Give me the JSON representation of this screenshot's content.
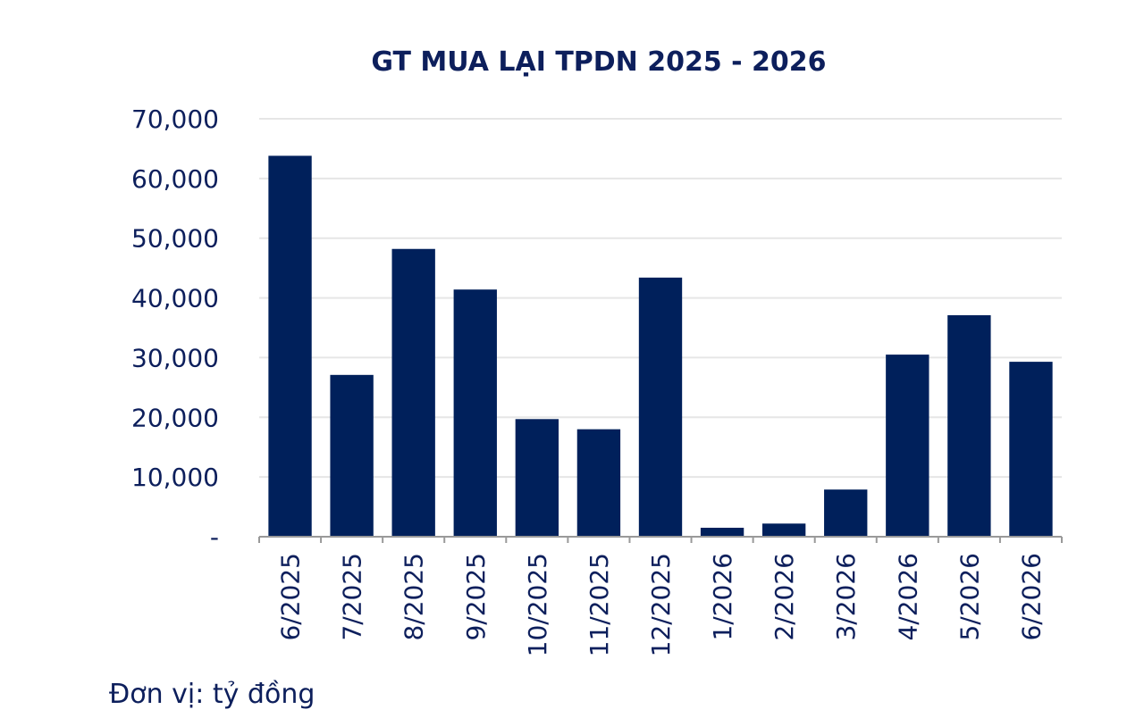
{
  "chart_data": {
    "type": "bar",
    "title": "GT MUA LẠI TPDN 2025 - 2026",
    "categories": [
      "6/2025",
      "7/2025",
      "8/2025",
      "9/2025",
      "10/2025",
      "11/2025",
      "12/2025",
      "1/2026",
      "2/2026",
      "3/2026",
      "4/2026",
      "5/2026",
      "6/2026"
    ],
    "series": [
      {
        "values": [
          63800,
          27100,
          48200,
          41400,
          19700,
          18000,
          43400,
          1500,
          2200,
          7900,
          30500,
          37100,
          29300
        ]
      }
    ],
    "ylim": [
      0,
      70000
    ],
    "yticks": [
      0,
      10000,
      20000,
      30000,
      40000,
      50000,
      60000,
      70000
    ],
    "ytick_labels": [
      "-",
      "10,000",
      "20,000",
      "30,000",
      "40,000",
      "50,000",
      "60,000",
      "70,000"
    ],
    "xlabel": "",
    "ylabel": "",
    "grid": true,
    "bar_color": "#00205b",
    "text_color": "#0d1f5c",
    "grid_color": "#e6e6e6",
    "axis_color": "#999999"
  },
  "footer": {
    "unit_note": "Đơn vị: tỷ đồng"
  }
}
